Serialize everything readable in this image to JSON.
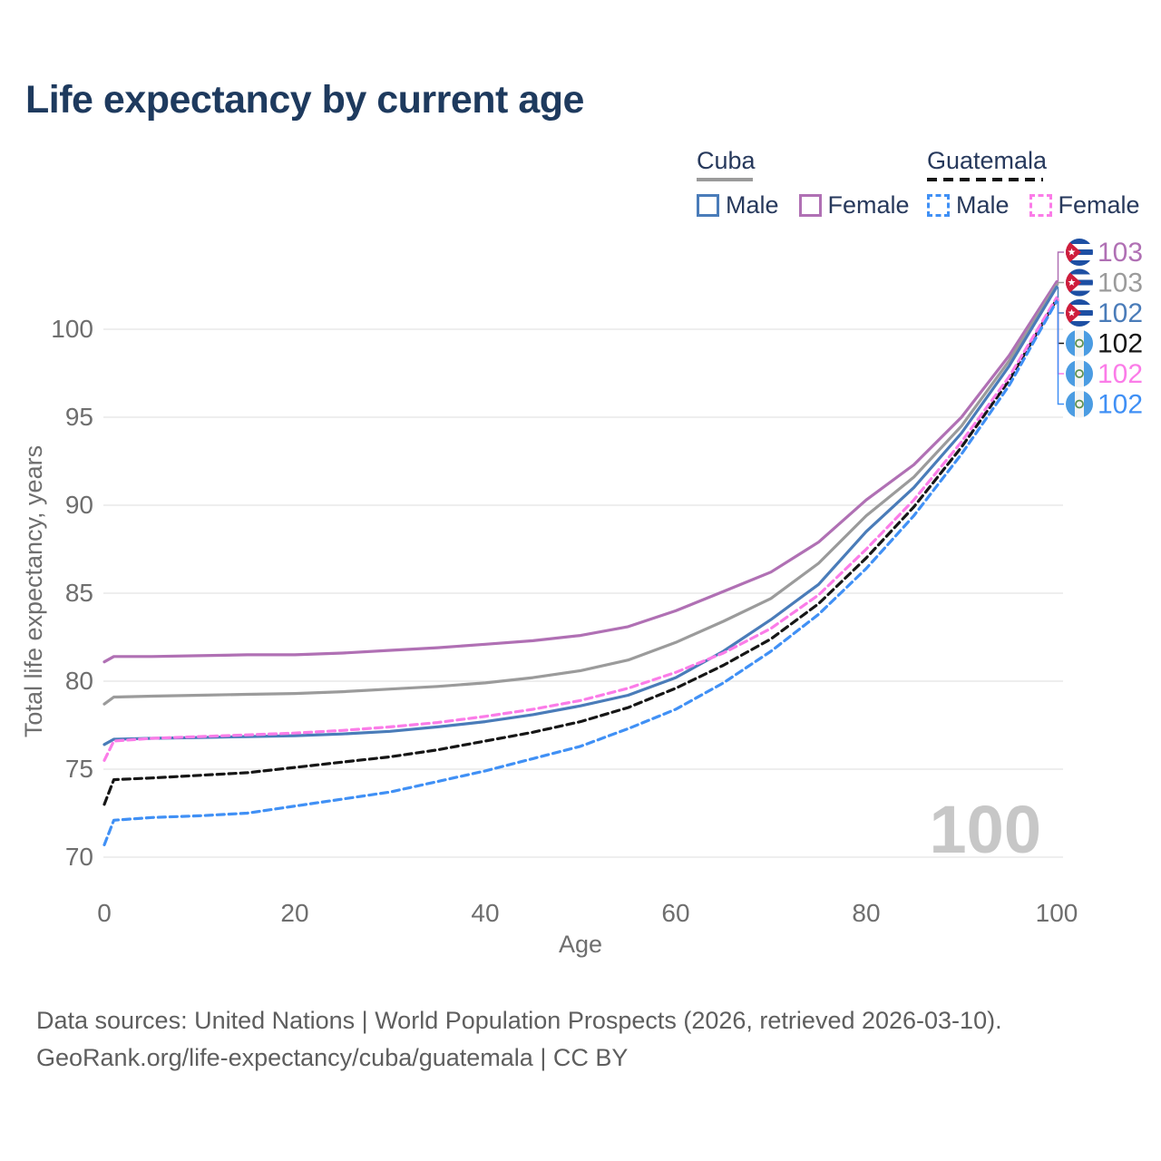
{
  "title": "Life expectancy by current age",
  "legend": {
    "groups": [
      {
        "country": "Cuba",
        "line_style": "solid",
        "line_color": "#9b9b9b",
        "items": [
          {
            "label": "Male",
            "color": "#4a7cb9",
            "dashed": false
          },
          {
            "label": "Female",
            "color": "#b070b4",
            "dashed": false
          }
        ]
      },
      {
        "country": "Guatemala",
        "line_style": "dashed",
        "line_color": "#161616",
        "items": [
          {
            "label": "Male",
            "color": "#4090f5",
            "dashed": true
          },
          {
            "label": "Female",
            "color": "#fb7ce8",
            "dashed": true
          }
        ]
      }
    ]
  },
  "chart_data": {
    "type": "line",
    "title": "Life expectancy by current age",
    "xlabel": "Age",
    "ylabel": "Total life expectancy, years",
    "xlim": [
      0,
      100
    ],
    "ylim": [
      70,
      103.5
    ],
    "xticks": [
      0,
      20,
      40,
      60,
      80,
      100
    ],
    "yticks": [
      70,
      75,
      80,
      85,
      90,
      95,
      100
    ],
    "grid": "horizontal",
    "legend_position": "top-right",
    "watermark": "100",
    "x": [
      0,
      1,
      5,
      10,
      15,
      20,
      25,
      30,
      35,
      40,
      45,
      50,
      55,
      60,
      65,
      70,
      75,
      80,
      85,
      90,
      95,
      100
    ],
    "series": [
      {
        "id": "cuba-female",
        "name": "Cuba Female",
        "country": "Cuba",
        "color": "#b070b4",
        "dash": null,
        "values": [
          81.1,
          81.4,
          81.4,
          81.45,
          81.5,
          81.5,
          81.6,
          81.75,
          81.9,
          82.1,
          82.3,
          82.6,
          83.1,
          84.0,
          85.1,
          86.2,
          87.9,
          90.3,
          92.3,
          95.0,
          98.5,
          102.7
        ]
      },
      {
        "id": "cuba-all",
        "name": "Cuba",
        "country": "Cuba",
        "color": "#9b9b9b",
        "dash": null,
        "values": [
          78.7,
          79.1,
          79.15,
          79.2,
          79.25,
          79.3,
          79.4,
          79.55,
          79.7,
          79.9,
          80.2,
          80.6,
          81.2,
          82.2,
          83.4,
          84.7,
          86.7,
          89.4,
          91.6,
          94.5,
          98.2,
          102.5
        ]
      },
      {
        "id": "cuba-male",
        "name": "Cuba Male",
        "country": "Cuba",
        "color": "#4a7cb9",
        "dash": null,
        "values": [
          76.4,
          76.7,
          76.75,
          76.8,
          76.85,
          76.9,
          77.0,
          77.15,
          77.4,
          77.7,
          78.1,
          78.6,
          79.2,
          80.2,
          81.7,
          83.5,
          85.5,
          88.5,
          91.0,
          94.1,
          97.9,
          102.4
        ]
      },
      {
        "id": "guatemala-all",
        "name": "Guatemala",
        "country": "Guatemala",
        "color": "#161616",
        "dash": "8 5",
        "values": [
          73.0,
          74.4,
          74.5,
          74.65,
          74.8,
          75.1,
          75.4,
          75.7,
          76.1,
          76.6,
          77.1,
          77.7,
          78.5,
          79.6,
          80.9,
          82.4,
          84.4,
          87.0,
          89.9,
          93.3,
          97.1,
          101.7
        ]
      },
      {
        "id": "guatemala-female",
        "name": "Guatemala Female",
        "country": "Guatemala",
        "color": "#fb7ce8",
        "dash": "8 5",
        "values": [
          75.5,
          76.6,
          76.75,
          76.85,
          76.95,
          77.05,
          77.2,
          77.4,
          77.65,
          78.0,
          78.4,
          78.9,
          79.6,
          80.5,
          81.6,
          83.0,
          84.9,
          87.5,
          90.3,
          93.6,
          97.3,
          101.8
        ]
      },
      {
        "id": "guatemala-male",
        "name": "Guatemala Male",
        "country": "Guatemala",
        "color": "#4090f5",
        "dash": "8 5",
        "values": [
          70.7,
          72.1,
          72.25,
          72.35,
          72.5,
          72.9,
          73.3,
          73.7,
          74.3,
          74.9,
          75.6,
          76.3,
          77.3,
          78.4,
          79.9,
          81.7,
          83.8,
          86.4,
          89.4,
          92.9,
          96.8,
          101.6
        ]
      }
    ],
    "labels": [
      {
        "series": "cuba-female",
        "value": "103",
        "flag": "cuba",
        "color": "#b070b4"
      },
      {
        "series": "cuba-all",
        "value": "103",
        "flag": "cuba",
        "color": "#9b9b9b"
      },
      {
        "series": "cuba-male",
        "value": "102",
        "flag": "cuba",
        "color": "#4a7cb9"
      },
      {
        "series": "guatemala-all",
        "value": "102",
        "flag": "guatemala",
        "color": "#161616"
      },
      {
        "series": "guatemala-female",
        "value": "102",
        "flag": "guatemala",
        "color": "#fb7ce8"
      },
      {
        "series": "guatemala-male",
        "value": "102",
        "flag": "guatemala",
        "color": "#4090f5"
      }
    ]
  },
  "footer": {
    "line1": "Data sources: United Nations | World Population Prospects (2026, retrieved 2026-03-10).",
    "line2": "GeoRank.org/life-expectancy/cuba/guatemala | CC BY"
  }
}
